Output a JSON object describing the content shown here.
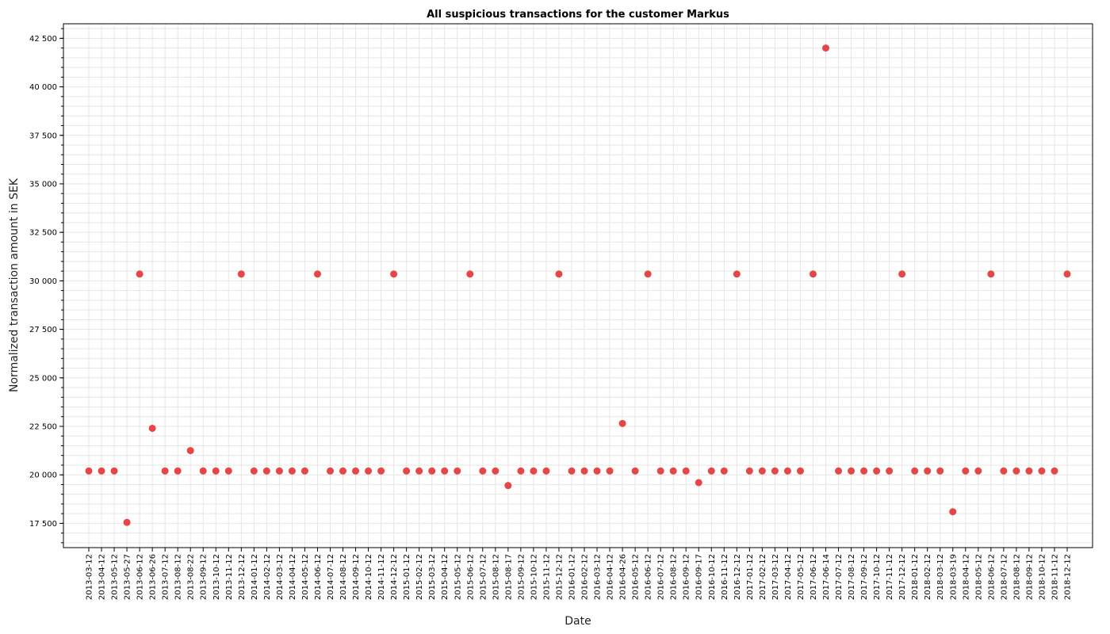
{
  "chart_data": {
    "type": "scatter",
    "title": "All suspicious transactions for the customer Markus",
    "xlabel": "Date",
    "ylabel": "Normalized transaction amount in SEK",
    "ylim": [
      16250,
      43250
    ],
    "y_ticks": [
      "17 500",
      "20 000",
      "22 500",
      "25 000",
      "27 500",
      "30 000",
      "32 500",
      "35 000",
      "37 500",
      "40 000",
      "42 500"
    ],
    "y_tick_values": [
      17500,
      20000,
      22500,
      25000,
      27500,
      30000,
      32500,
      35000,
      37500,
      40000,
      42500
    ],
    "grid": true,
    "marker_color": "#e84545",
    "x": [
      "2013-03-12",
      "2013-04-12",
      "2013-05-12",
      "2013-05-27",
      "2013-06-12",
      "2013-06-26",
      "2013-07-12",
      "2013-08-12",
      "2013-08-22",
      "2013-09-12",
      "2013-10-12",
      "2013-11-12",
      "2013-12-12",
      "2014-01-12",
      "2014-02-12",
      "2014-03-12",
      "2014-04-12",
      "2014-05-12",
      "2014-06-12",
      "2014-07-12",
      "2014-08-12",
      "2014-09-12",
      "2014-10-12",
      "2014-11-12",
      "2014-12-12",
      "2015-01-12",
      "2015-02-12",
      "2015-03-12",
      "2015-04-12",
      "2015-05-12",
      "2015-06-12",
      "2015-07-12",
      "2015-08-12",
      "2015-08-17",
      "2015-09-12",
      "2015-10-12",
      "2015-11-12",
      "2015-12-12",
      "2016-01-12",
      "2016-02-12",
      "2016-03-12",
      "2016-04-12",
      "2016-04-26",
      "2016-05-12",
      "2016-06-12",
      "2016-07-12",
      "2016-08-12",
      "2016-09-12",
      "2016-09-17",
      "2016-10-12",
      "2016-11-12",
      "2016-12-12",
      "2017-01-12",
      "2017-02-12",
      "2017-03-12",
      "2017-04-12",
      "2017-05-12",
      "2017-06-12",
      "2017-06-14",
      "2017-07-12",
      "2017-08-12",
      "2017-09-12",
      "2017-10-12",
      "2017-11-12",
      "2017-12-12",
      "2018-01-12",
      "2018-02-12",
      "2018-03-12",
      "2018-03-19",
      "2018-04-12",
      "2018-05-12",
      "2018-06-12",
      "2018-07-12",
      "2018-08-12",
      "2018-09-12",
      "2018-10-12",
      "2018-11-12",
      "2018-12-12"
    ],
    "y": [
      20200,
      20200,
      20200,
      17550,
      30350,
      22400,
      20200,
      20200,
      21250,
      20200,
      20200,
      20200,
      30350,
      20200,
      20200,
      20200,
      20200,
      20200,
      30350,
      20200,
      20200,
      20200,
      20200,
      20200,
      30350,
      20200,
      20200,
      20200,
      20200,
      20200,
      30350,
      20200,
      20200,
      19450,
      20200,
      20200,
      20200,
      30350,
      20200,
      20200,
      20200,
      20200,
      22650,
      20200,
      30350,
      20200,
      20200,
      20200,
      19600,
      20200,
      20200,
      30350,
      20200,
      20200,
      20200,
      20200,
      20200,
      30350,
      42000,
      20200,
      20200,
      20200,
      20200,
      20200,
      30350,
      20200,
      20200,
      20200,
      18100,
      20200,
      20200,
      30350,
      20200,
      20200,
      20200,
      20200,
      20200,
      30350
    ]
  }
}
